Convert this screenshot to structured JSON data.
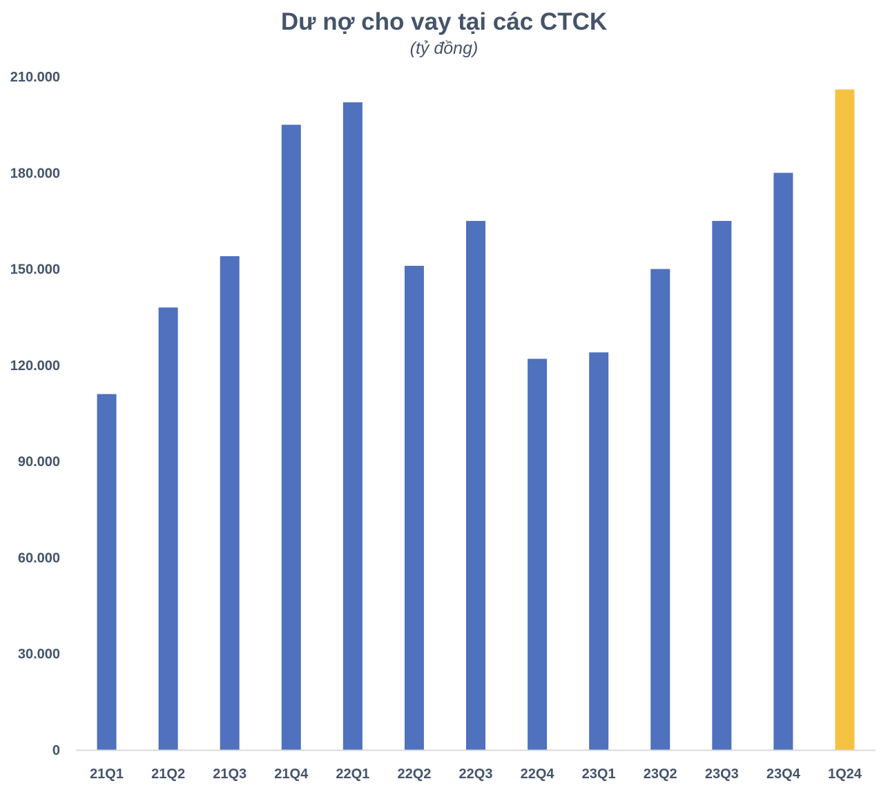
{
  "chart_data": {
    "type": "bar",
    "title": "Dư nợ cho vay tại các CTCK",
    "subtitle": "(tỷ đồng)",
    "xlabel": "",
    "ylabel": "",
    "categories": [
      "21Q1",
      "21Q2",
      "21Q3",
      "21Q4",
      "22Q1",
      "22Q2",
      "22Q3",
      "22Q4",
      "23Q1",
      "23Q2",
      "23Q3",
      "23Q4",
      "1Q24"
    ],
    "values": [
      111000,
      138000,
      154000,
      195000,
      202000,
      151000,
      165000,
      122000,
      124000,
      150000,
      165000,
      180000,
      206000
    ],
    "ylim": [
      0,
      210000
    ],
    "yticks": [
      0,
      30000,
      60000,
      90000,
      120000,
      150000,
      180000,
      210000
    ],
    "ytick_labels": [
      "0",
      "30.000",
      "60.000",
      "90.000",
      "120.000",
      "150.000",
      "180.000",
      "210.000"
    ],
    "grid": false,
    "colors": {
      "bar": "#4f71be",
      "highlight": "#f5c242",
      "axis": "#d9d9d9",
      "text": "#44546a"
    },
    "highlight_category": "1Q24"
  }
}
